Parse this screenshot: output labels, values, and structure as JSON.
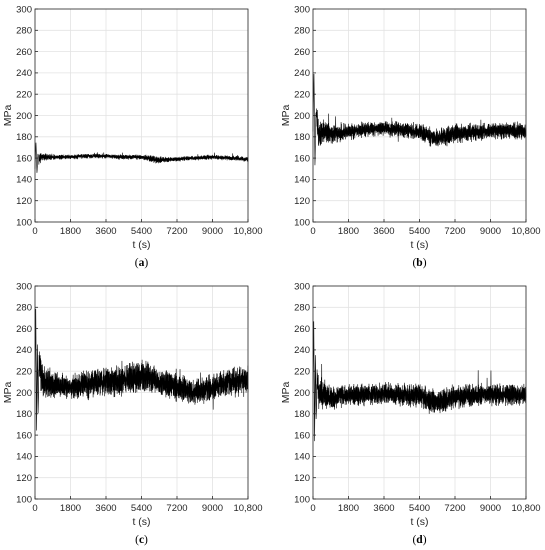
{
  "chart_data": [
    {
      "type": "line",
      "panel_label": "a",
      "xlabel": "t (s)",
      "ylabel": "MPa",
      "xlim": [
        0,
        10800
      ],
      "ylim": [
        100,
        300
      ],
      "xticks": [
        0,
        1800,
        3600,
        5400,
        7200,
        9000,
        10800
      ],
      "xtick_labels": [
        "0",
        "1800",
        "3600",
        "5400",
        "7200",
        "9000",
        "10,800"
      ],
      "yticks": [
        100,
        120,
        140,
        160,
        180,
        200,
        220,
        240,
        260,
        280,
        300
      ],
      "grid": true,
      "series": [
        {
          "color": "#000000",
          "x": [
            0,
            50,
            100,
            150,
            200,
            260,
            400,
            1000,
            1800,
            2700,
            3600,
            4500,
            5400,
            6000,
            6300,
            7200,
            8100,
            9000,
            9900,
            10800
          ],
          "values": [
            150,
            175,
            145,
            165,
            158,
            160,
            161,
            161,
            161,
            162,
            162,
            161,
            161,
            159,
            158,
            159,
            160,
            161,
            160,
            159
          ],
          "noise_amplitude": [
            0,
            0,
            0,
            0,
            6,
            4,
            3,
            2,
            2,
            2,
            2,
            2,
            2,
            3,
            3,
            2,
            2,
            2,
            2,
            2
          ]
        }
      ]
    },
    {
      "type": "line",
      "panel_label": "b",
      "xlabel": "t (s)",
      "ylabel": "MPa",
      "xlim": [
        0,
        10800
      ],
      "ylim": [
        100,
        300
      ],
      "xticks": [
        0,
        1800,
        3600,
        5400,
        7200,
        9000,
        10800
      ],
      "xtick_labels": [
        "0",
        "1800",
        "3600",
        "5400",
        "7200",
        "9000",
        "10,800"
      ],
      "yticks": [
        100,
        120,
        140,
        160,
        180,
        200,
        220,
        240,
        260,
        280,
        300
      ],
      "grid": true,
      "series": [
        {
          "color": "#000000",
          "x": [
            0,
            50,
            100,
            150,
            200,
            300,
            500,
            1000,
            1800,
            2700,
            3600,
            4500,
            5400,
            6000,
            6300,
            7200,
            8100,
            9000,
            9900,
            10800
          ],
          "values": [
            185,
            240,
            150,
            205,
            195,
            180,
            185,
            182,
            185,
            187,
            188,
            186,
            185,
            180,
            178,
            183,
            184,
            186,
            186,
            185
          ],
          "noise_amplitude": [
            0,
            0,
            0,
            0,
            12,
            12,
            10,
            8,
            7,
            6,
            6,
            7,
            7,
            8,
            8,
            8,
            7,
            7,
            7,
            7
          ]
        }
      ]
    },
    {
      "type": "line",
      "panel_label": "c",
      "xlabel": "t (s)",
      "ylabel": "MPa",
      "xlim": [
        0,
        10800
      ],
      "ylim": [
        100,
        300
      ],
      "xticks": [
        0,
        1800,
        3600,
        5400,
        7200,
        9000,
        10800
      ],
      "xtick_labels": [
        "0",
        "1800",
        "3600",
        "5400",
        "7200",
        "9000",
        "10,800"
      ],
      "yticks": [
        100,
        120,
        140,
        160,
        180,
        200,
        220,
        240,
        260,
        280,
        300
      ],
      "grid": true,
      "series": [
        {
          "color": "#000000",
          "x": [
            0,
            40,
            80,
            120,
            160,
            200,
            300,
            500,
            1000,
            1800,
            2700,
            3600,
            4500,
            5400,
            6000,
            6300,
            7200,
            8100,
            9000,
            9900,
            10800
          ],
          "values": [
            200,
            280,
            160,
            250,
            175,
            235,
            215,
            210,
            207,
            205,
            208,
            210,
            212,
            215,
            212,
            210,
            205,
            200,
            205,
            210,
            212
          ],
          "noise_amplitude": [
            0,
            0,
            0,
            0,
            0,
            15,
            18,
            14,
            11,
            10,
            12,
            12,
            13,
            14,
            13,
            12,
            12,
            10,
            12,
            12,
            12
          ]
        }
      ]
    },
    {
      "type": "line",
      "panel_label": "d",
      "xlabel": "t (s)",
      "ylabel": "MPa",
      "xlim": [
        0,
        10800
      ],
      "ylim": [
        100,
        300
      ],
      "xticks": [
        0,
        1800,
        3600,
        5400,
        7200,
        9000,
        10800
      ],
      "xtick_labels": [
        "0",
        "1800",
        "3600",
        "5400",
        "7200",
        "9000",
        "10,800"
      ],
      "yticks": [
        100,
        120,
        140,
        160,
        180,
        200,
        220,
        240,
        260,
        280,
        300
      ],
      "grid": true,
      "series": [
        {
          "color": "#000000",
          "x": [
            0,
            40,
            80,
            120,
            160,
            200,
            300,
            500,
            1000,
            1800,
            2700,
            3600,
            4500,
            5400,
            6000,
            6300,
            7200,
            8100,
            9000,
            9900,
            10800
          ],
          "values": [
            200,
            268,
            150,
            240,
            170,
            215,
            200,
            198,
            196,
            197,
            198,
            199,
            198,
            197,
            192,
            190,
            196,
            197,
            198,
            198,
            197
          ],
          "noise_amplitude": [
            0,
            0,
            0,
            0,
            0,
            14,
            13,
            12,
            10,
            9,
            9,
            9,
            9,
            10,
            11,
            11,
            10,
            9,
            9,
            9,
            9
          ]
        }
      ]
    }
  ]
}
